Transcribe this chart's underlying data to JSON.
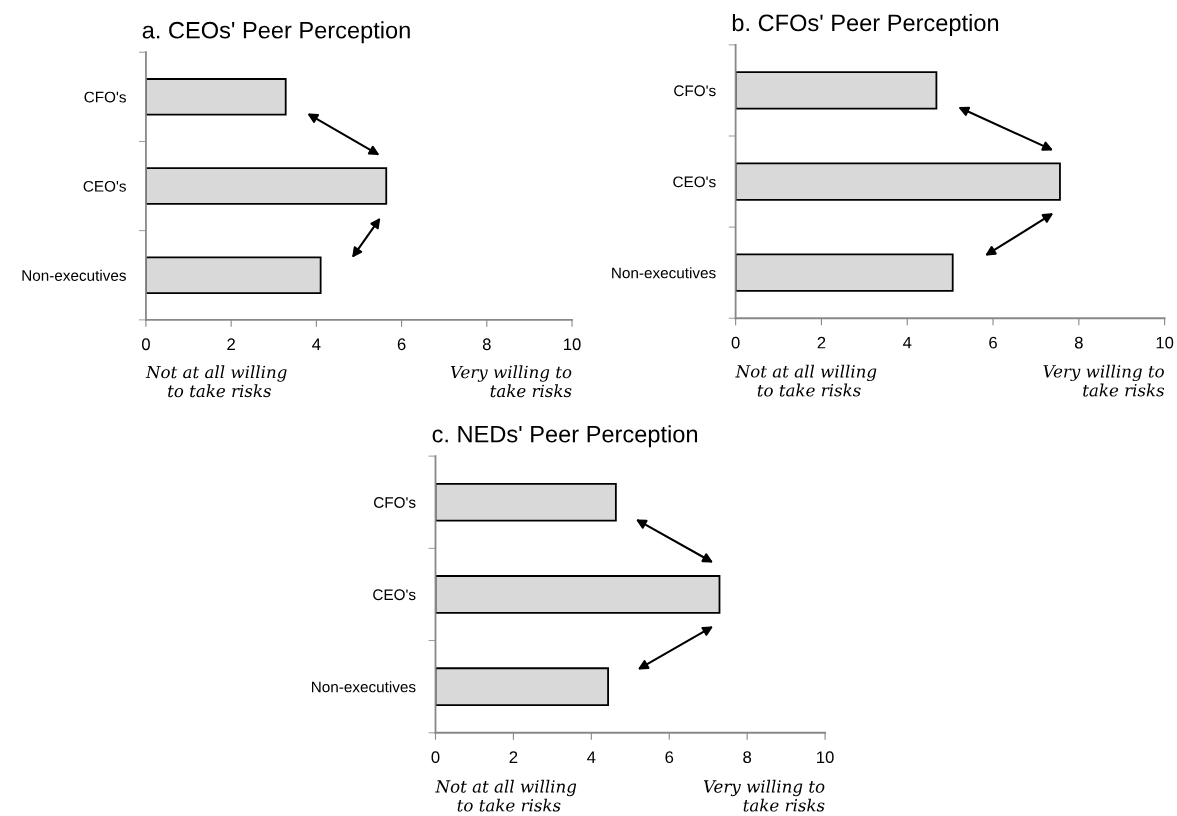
{
  "chart_data": [
    {
      "type": "bar",
      "orientation": "horizontal",
      "title": "a. CEOs' Peer Perception",
      "categories": [
        "CFO's",
        "CEO's",
        "Non-executives"
      ],
      "values": [
        3.28,
        5.64,
        4.1
      ],
      "color": "#d9d9d9",
      "xlim": [
        0,
        10
      ],
      "xticks": [
        0,
        2,
        4,
        6,
        8,
        10
      ],
      "grid": false,
      "legend": false,
      "annotations": [
        "Not at all willing\n    to take risks",
        "Very willing to\n      take risks"
      ]
    },
    {
      "type": "bar",
      "orientation": "horizontal",
      "title": "b. CFOs' Peer Perception",
      "categories": [
        "CFO's",
        "CEO's",
        "Non-executives"
      ],
      "values": [
        4.68,
        7.56,
        5.06
      ],
      "color": "#d9d9d9",
      "xlim": [
        0,
        10
      ],
      "xticks": [
        0,
        2,
        4,
        6,
        8,
        10
      ],
      "grid": false,
      "legend": false,
      "annotations": [
        "Not at all willing\n    to take risks",
        "Very willing to\n      take risks"
      ]
    },
    {
      "type": "bar",
      "orientation": "horizontal",
      "title": "c. NEDs' Peer Perception",
      "categories": [
        "CFO's",
        "CEO's",
        "Non-executives"
      ],
      "values": [
        4.63,
        7.29,
        4.43
      ],
      "color": "#d9d9d9",
      "xlim": [
        0,
        10
      ],
      "xticks": [
        0,
        2,
        4,
        6,
        8,
        10
      ],
      "grid": false,
      "legend": false,
      "annotations": [
        "Not at all willing\n    to take risks",
        "Very willing to\n      take risks"
      ]
    }
  ]
}
